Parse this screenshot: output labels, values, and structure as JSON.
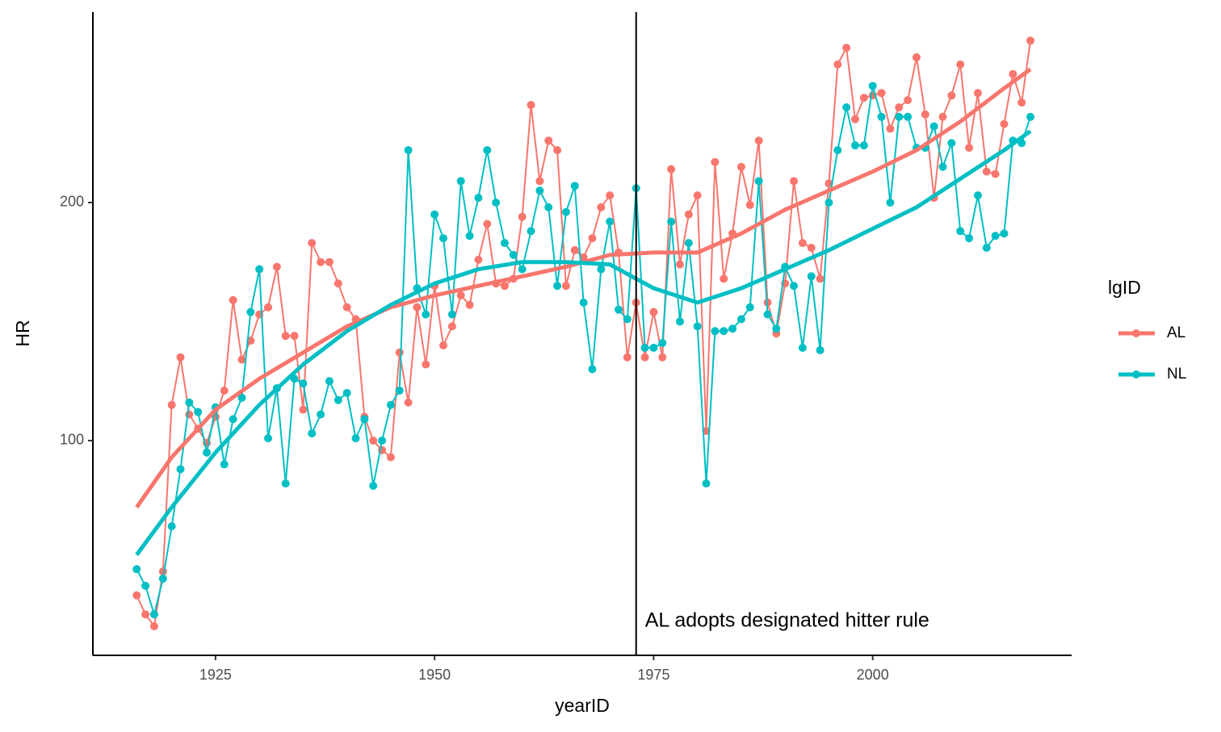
{
  "chart_data": {
    "type": "line",
    "x_label": "yearID",
    "y_label": "HR",
    "legend_title": "lgID",
    "legend_position": "right",
    "xlim": [
      1911,
      2022.7
    ],
    "ylim": [
      9.8,
      280
    ],
    "xticks": [
      1925,
      1950,
      1975,
      2000
    ],
    "yticks": [
      100,
      200
    ],
    "grid": false,
    "x": [
      1916,
      1917,
      1918,
      1919,
      1920,
      1921,
      1922,
      1923,
      1924,
      1925,
      1926,
      1927,
      1928,
      1929,
      1930,
      1931,
      1932,
      1933,
      1934,
      1935,
      1936,
      1937,
      1938,
      1939,
      1940,
      1941,
      1942,
      1943,
      1944,
      1945,
      1946,
      1947,
      1948,
      1949,
      1950,
      1951,
      1952,
      1953,
      1954,
      1955,
      1956,
      1957,
      1958,
      1959,
      1960,
      1961,
      1962,
      1963,
      1964,
      1965,
      1966,
      1967,
      1968,
      1969,
      1970,
      1971,
      1972,
      1973,
      1974,
      1975,
      1976,
      1977,
      1978,
      1979,
      1980,
      1981,
      1982,
      1983,
      1984,
      1985,
      1986,
      1987,
      1988,
      1989,
      1990,
      1991,
      1992,
      1993,
      1994,
      1995,
      1996,
      1997,
      1998,
      1999,
      2000,
      2001,
      2002,
      2003,
      2004,
      2005,
      2006,
      2007,
      2008,
      2009,
      2010,
      2011,
      2012,
      2013,
      2014,
      2015,
      2016,
      2017,
      2018
    ],
    "smooth_x": [
      1916,
      1920,
      1925,
      1930,
      1935,
      1940,
      1945,
      1950,
      1955,
      1960,
      1965,
      1970,
      1975,
      1980,
      1985,
      1990,
      1995,
      2000,
      2005,
      2010,
      2015,
      2018
    ],
    "series": [
      {
        "name": "AL",
        "color": "#F8766D",
        "values": [
          35,
          27,
          22,
          45,
          115,
          135,
          111,
          105,
          99,
          110,
          121,
          159,
          134,
          142,
          153,
          156,
          173,
          144,
          144,
          113,
          183,
          175,
          175,
          166,
          156,
          151,
          110,
          100,
          96,
          93,
          137,
          116,
          156,
          132,
          165,
          140,
          148,
          161,
          157,
          176,
          191,
          166,
          165,
          168,
          194,
          241,
          209,
          226,
          222,
          165,
          180,
          177,
          185,
          198,
          203,
          179,
          135,
          158,
          135,
          154,
          135,
          214,
          174,
          195,
          203,
          104,
          217,
          168,
          187,
          215,
          199,
          226,
          158,
          145,
          166,
          209,
          183,
          181,
          168,
          208,
          258,
          265,
          235,
          244,
          245,
          246,
          231,
          240,
          243,
          261,
          237,
          202,
          236,
          245,
          258,
          223,
          246,
          213,
          212,
          233,
          254,
          242,
          268
        ],
        "smooth": [
          72,
          93,
          113,
          126,
          137,
          148,
          156,
          161,
          165,
          169,
          173,
          178,
          179,
          179,
          187,
          197,
          205,
          213,
          222,
          234,
          248,
          256
        ]
      },
      {
        "name": "NL",
        "color": "#00BFC4",
        "values": [
          46,
          39,
          27,
          42,
          64,
          88,
          116,
          112,
          95,
          114,
          90,
          109,
          118,
          154,
          172,
          101,
          122,
          82,
          126,
          124,
          103,
          111,
          125,
          117,
          120,
          101,
          109,
          81,
          100,
          115,
          121,
          222,
          164,
          153,
          195,
          185,
          153,
          209,
          186,
          202,
          222,
          200,
          183,
          178,
          172,
          188,
          205,
          198,
          165,
          196,
          207,
          158,
          130,
          172,
          192,
          155,
          151,
          206,
          139,
          139,
          141,
          192,
          150,
          183,
          148,
          82,
          146,
          146,
          147,
          151,
          156,
          209,
          153,
          147,
          173,
          165,
          139,
          169,
          138,
          200,
          222,
          240,
          224,
          224,
          249,
          236,
          200,
          236,
          236,
          223,
          223,
          232,
          215,
          225,
          188,
          185,
          203,
          181,
          186,
          187,
          226,
          225,
          236
        ],
        "smooth": [
          52,
          72,
          95,
          115,
          132,
          146,
          157,
          166,
          172,
          175,
          175,
          174,
          164,
          158,
          164,
          172,
          180,
          189,
          198,
          210,
          222,
          230
        ]
      }
    ],
    "annotation": {
      "x": 1973,
      "text": "AL adopts designated hitter rule"
    }
  }
}
